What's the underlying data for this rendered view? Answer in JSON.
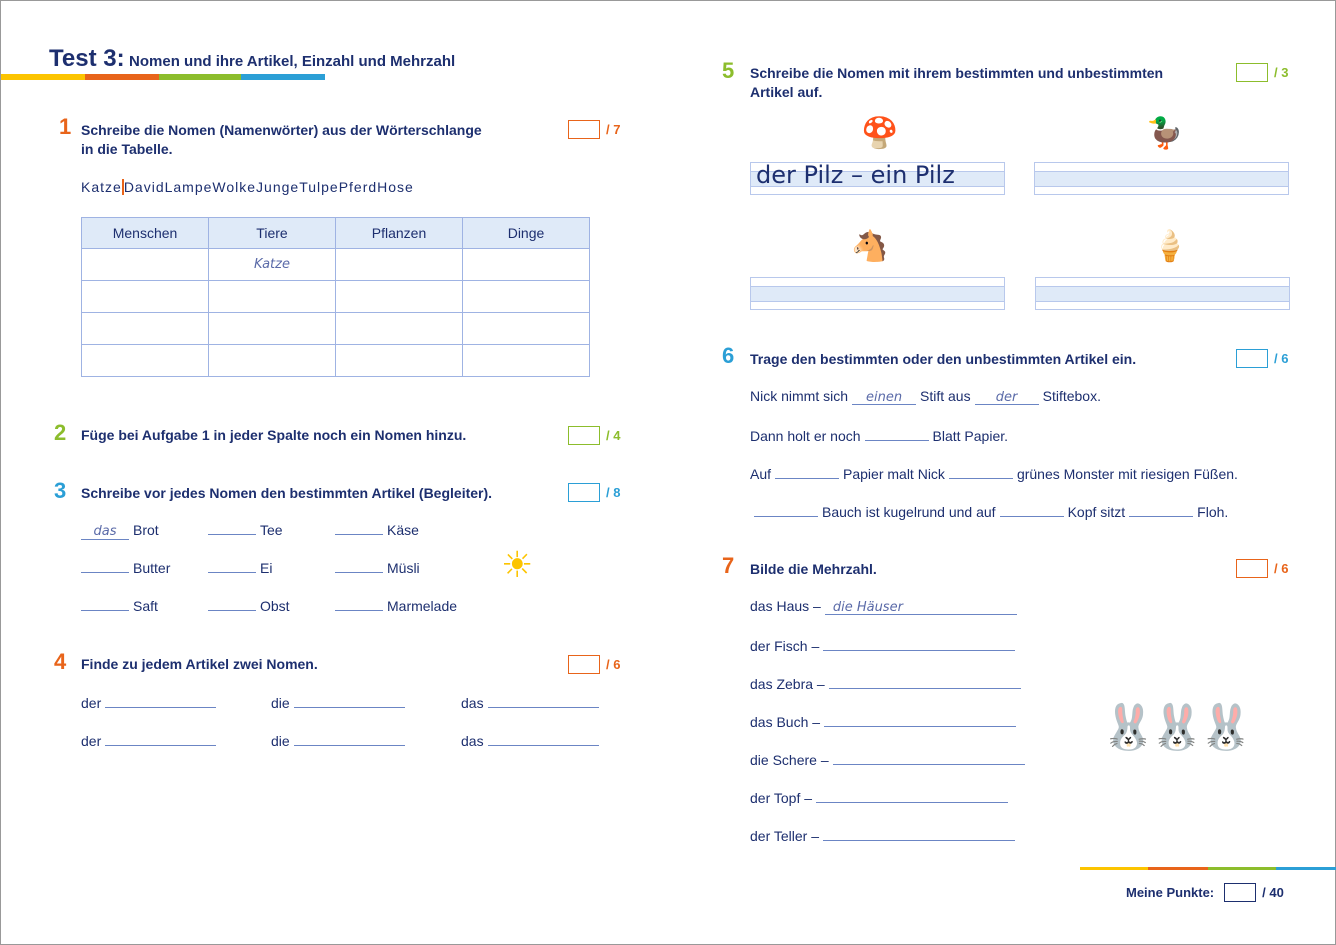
{
  "colors": {
    "navy": "#1d2f6f",
    "orange": "#e8641a",
    "green": "#8cbd2c",
    "blue": "#2b9fd6",
    "yellow": "#fcc400"
  },
  "header": {
    "test": "Test 3:",
    "subtitle": "Nomen und ihre Artikel, Einzahl und Mehrzahl"
  },
  "t1": {
    "num": "1",
    "text1": "Schreibe die Nomen (Namenwörter) aus der Wörterschlange",
    "text2": "in die Tabelle.",
    "score": "/ 7",
    "snake_a": "Katze",
    "snake_b": "DavidLampeWolkeJungeTulpePferdHose",
    "columns": [
      "Menschen",
      "Tiere",
      "Pflanzen",
      "Dinge"
    ],
    "rows": [
      [
        "",
        "Katze",
        "",
        ""
      ],
      [
        "",
        "",
        "",
        ""
      ],
      [
        "",
        "",
        "",
        ""
      ],
      [
        "",
        "",
        "",
        ""
      ]
    ]
  },
  "t2": {
    "num": "2",
    "text": "Füge bei Aufgabe 1 in jeder Spalte noch ein Nomen hinzu.",
    "score": "/ 4"
  },
  "t3": {
    "num": "3",
    "text": "Schreibe vor jedes Nomen den bestimmten Artikel (Begleiter).",
    "score": "/ 8",
    "items": [
      {
        "answer": "das",
        "word": "Brot"
      },
      {
        "answer": "",
        "word": "Tee"
      },
      {
        "answer": "",
        "word": "Käse"
      },
      {
        "answer": "",
        "word": "Butter"
      },
      {
        "answer": "",
        "word": "Ei"
      },
      {
        "answer": "",
        "word": "Müsli"
      },
      {
        "answer": "",
        "word": "Saft"
      },
      {
        "answer": "",
        "word": "Obst"
      },
      {
        "answer": "",
        "word": "Marmelade"
      }
    ]
  },
  "t4": {
    "num": "4",
    "text": "Finde zu jedem Artikel zwei Nomen.",
    "score": "/ 6",
    "articles": [
      "der",
      "die",
      "das",
      "der",
      "die",
      "das"
    ]
  },
  "t5": {
    "num": "5",
    "text1": "Schreibe die Nomen mit ihrem bestimmten und unbestimmten",
    "text2": "Artikel auf.",
    "score": "/ 3",
    "example": "der Pilz – ein Pilz",
    "icons": [
      "mushroom-icon",
      "duck-icon",
      "donkey-icon",
      "ice-cream-icon"
    ]
  },
  "t6": {
    "num": "6",
    "text": "Trage den bestimmten oder den unbestimmten Artikel ein.",
    "score": "/ 6",
    "l1": [
      "Nick nimmt sich",
      "einen",
      "Stift aus",
      "der",
      "Stiftebox."
    ],
    "l2": [
      "Dann holt er noch",
      "",
      "Blatt Papier."
    ],
    "l3": [
      "Auf",
      "",
      "Papier malt Nick",
      "",
      "grünes Monster mit riesigen Füßen."
    ],
    "l4": [
      "",
      "Bauch ist kugelrund und auf",
      "",
      "Kopf sitzt",
      "",
      "Floh."
    ]
  },
  "t7": {
    "num": "7",
    "text": "Bilde die Mehrzahl.",
    "score": "/ 6",
    "items": [
      {
        "word": "das Haus –",
        "answer": "die Häuser"
      },
      {
        "word": "der Fisch –",
        "answer": ""
      },
      {
        "word": "das Zebra –",
        "answer": ""
      },
      {
        "word": "das Buch –",
        "answer": ""
      },
      {
        "word": "die Schere –",
        "answer": ""
      },
      {
        "word": "der Topf –",
        "answer": ""
      },
      {
        "word": "der Teller –",
        "answer": ""
      }
    ]
  },
  "footer": {
    "label": "Meine Punkte:",
    "score": "/ 40"
  }
}
